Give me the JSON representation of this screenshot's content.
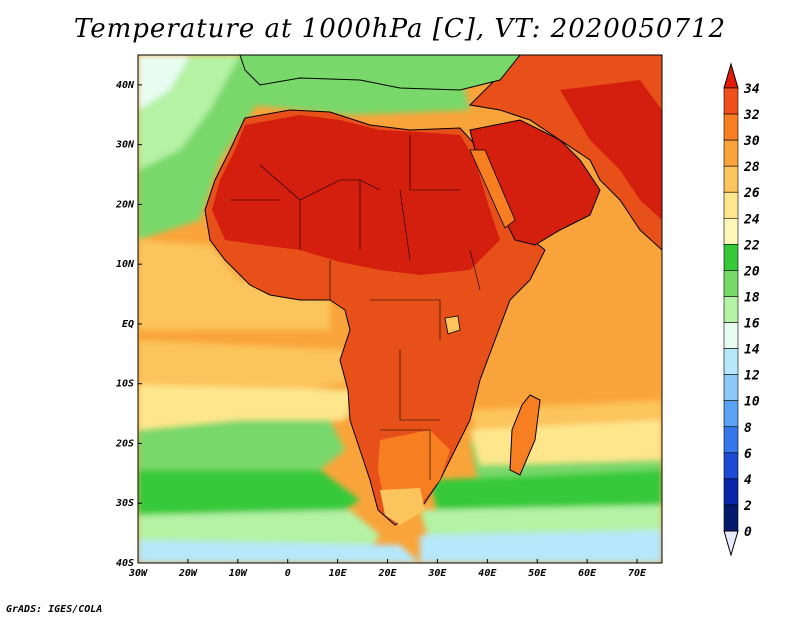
{
  "title": "Temperature at 1000hPa [C], VT: 2020050712",
  "footer": "GrADS: IGES/COLA",
  "colors": {
    "ocean_hot": "#f9a43a",
    "ocean_warm": "#fcc45c",
    "ocean_mild": "#fde68c",
    "ocean_cool": "#79d86a",
    "ocean_cold": "#b8ecf7",
    "land_hot": "#d41e0e",
    "land_warm": "#e8501a",
    "land_mild": "#f3852c",
    "coast": "#000000"
  },
  "chart_data": {
    "type": "heatmap",
    "title": "Temperature at 1000hPa [C], VT: 2020050712",
    "lon_range": [
      -30,
      75
    ],
    "lat_range": [
      -40,
      45
    ],
    "x_ticks": [
      "30W",
      "20W",
      "10W",
      "0",
      "10E",
      "20E",
      "30E",
      "40E",
      "50E",
      "60E",
      "70E"
    ],
    "x_tick_values": [
      -30,
      -20,
      -10,
      0,
      10,
      20,
      30,
      40,
      50,
      60,
      70
    ],
    "y_ticks": [
      "40N",
      "30N",
      "20N",
      "10N",
      "EQ",
      "10S",
      "20S",
      "30S",
      "40S"
    ],
    "y_tick_values": [
      40,
      30,
      20,
      10,
      0,
      -10,
      -20,
      -30,
      -40
    ],
    "colorbar": {
      "labels": [
        "34",
        "32",
        "30",
        "28",
        "26",
        "24",
        "22",
        "20",
        "18",
        "16",
        "14",
        "12",
        "10",
        "8",
        "6",
        "4",
        "2",
        "0"
      ],
      "colors": [
        "#e01c0a",
        "#f04e1b",
        "#f77f22",
        "#f9a43a",
        "#fcc45c",
        "#fde68c",
        "#fdf6b8",
        "#36c93a",
        "#79d86a",
        "#b4f2a4",
        "#e8fcf2",
        "#b4e8fa",
        "#8cc8f8",
        "#5aa2f4",
        "#3478ec",
        "#1c4ad4",
        "#0a24aa",
        "#061a6c"
      ],
      "min": 0,
      "max": 34,
      "interval": 2
    }
  }
}
